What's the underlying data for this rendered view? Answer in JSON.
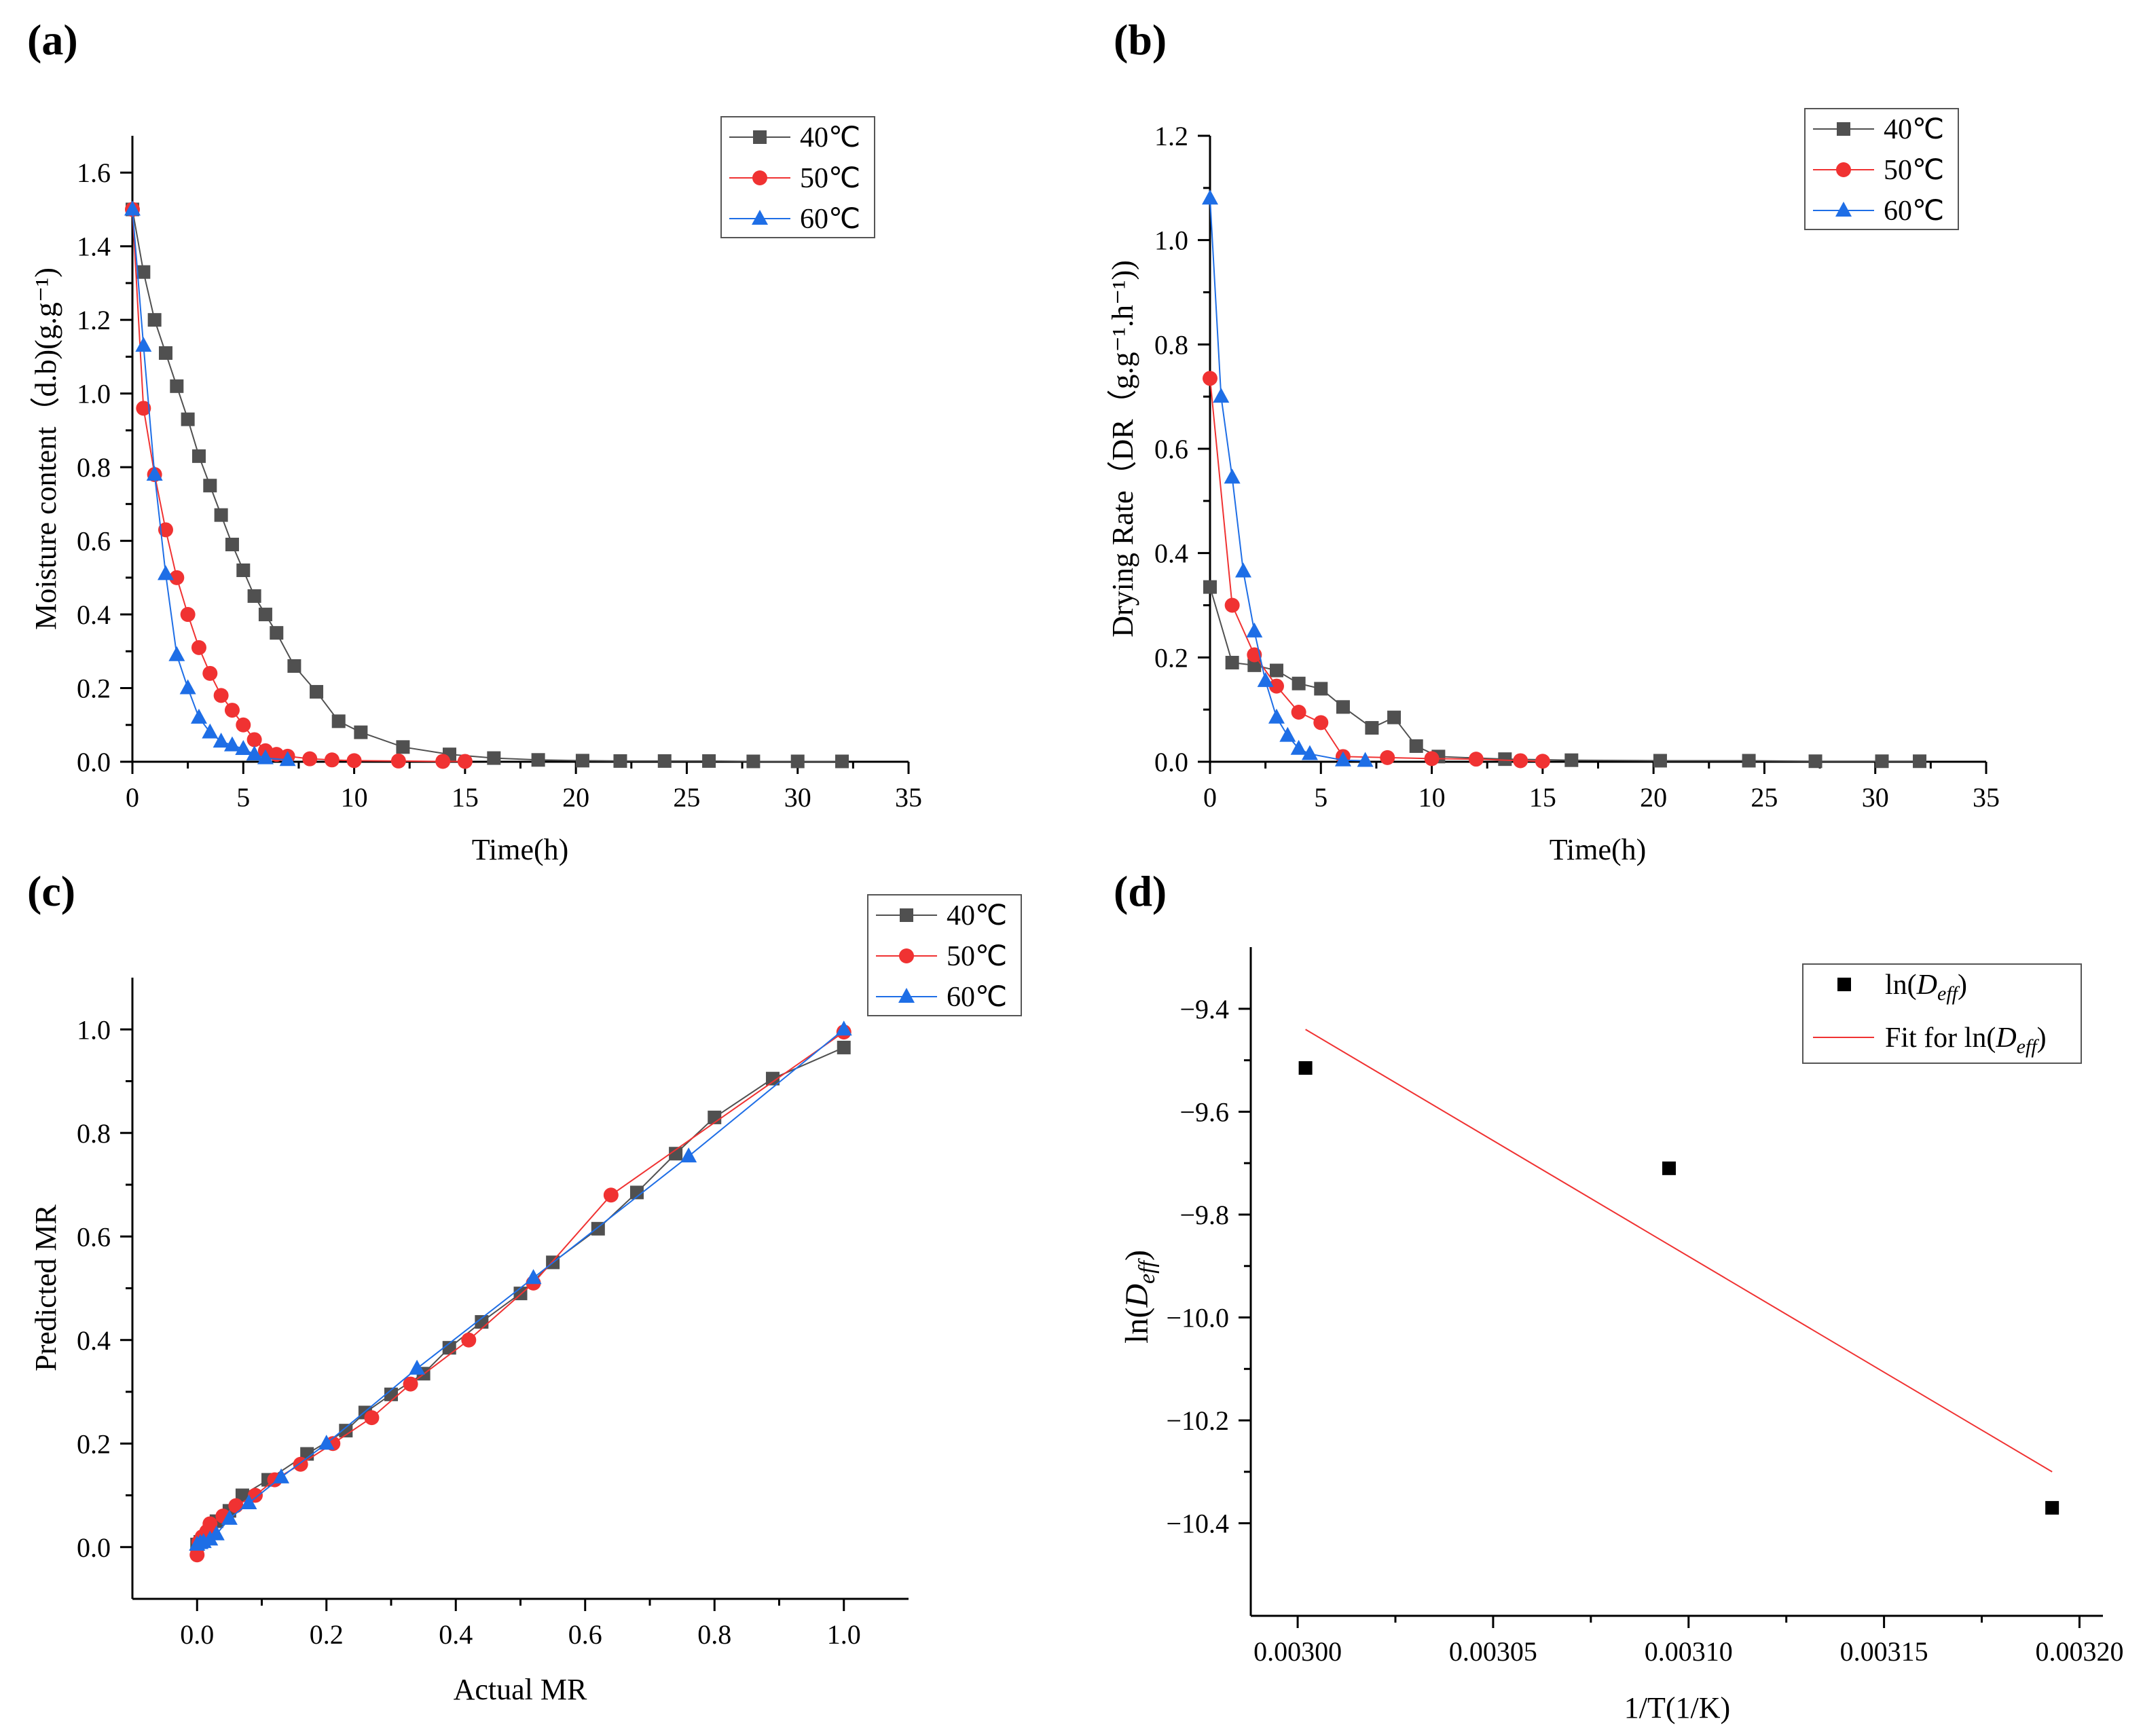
{
  "colors": {
    "s40": "#505050",
    "s50": "#f03232",
    "s60": "#1e6ee6",
    "black": "#000000",
    "fit": "#f03232"
  },
  "chart_data": [
    {
      "panel_label": "(a)",
      "type": "line",
      "xlabel": "Time(h)",
      "ylabel": "Moisture content（d.b)(g.g⁻¹)",
      "xlim": [
        0,
        35
      ],
      "ylim": [
        0,
        1.7
      ],
      "xticks": [
        0,
        5,
        10,
        15,
        20,
        25,
        30,
        35
      ],
      "xtick_labels": [
        "0",
        "5",
        "10",
        "15",
        "20",
        "25",
        "30",
        "35"
      ],
      "yticks": [
        0,
        0.2,
        0.4,
        0.6,
        0.8,
        1.0,
        1.2,
        1.4,
        1.6
      ],
      "ytick_labels": [
        "0.0",
        "0.2",
        "0.4",
        "0.6",
        "0.8",
        "1.0",
        "1.2",
        "1.4",
        "1.6"
      ],
      "legend_position": "top-right",
      "series": [
        {
          "name": "40℃",
          "marker": "square",
          "color": "#505050",
          "x": [
            0,
            0.5,
            1,
            1.5,
            2,
            2.5,
            3,
            3.5,
            4,
            4.5,
            5,
            5.5,
            6,
            6.5,
            7.3,
            8.3,
            9.3,
            10.3,
            12.2,
            14.3,
            16.3,
            18.3,
            20.3,
            22,
            24,
            26,
            28,
            30,
            32
          ],
          "y": [
            1.5,
            1.33,
            1.2,
            1.11,
            1.02,
            0.93,
            0.83,
            0.75,
            0.67,
            0.59,
            0.52,
            0.45,
            0.4,
            0.35,
            0.26,
            0.19,
            0.11,
            0.08,
            0.04,
            0.02,
            0.01,
            0.005,
            0.003,
            0.002,
            0.002,
            0.002,
            0.001,
            0.001,
            0.001
          ]
        },
        {
          "name": "50℃",
          "marker": "circle",
          "color": "#f03232",
          "x": [
            0,
            0.5,
            1,
            1.5,
            2,
            2.5,
            3,
            3.5,
            4,
            4.5,
            5,
            5.5,
            6,
            6.5,
            7,
            8,
            9,
            10,
            12,
            14,
            15
          ],
          "y": [
            1.5,
            0.96,
            0.78,
            0.63,
            0.5,
            0.4,
            0.31,
            0.24,
            0.18,
            0.14,
            0.1,
            0.06,
            0.03,
            0.02,
            0.015,
            0.008,
            0.005,
            0.003,
            0.002,
            0.001,
            0.001
          ]
        },
        {
          "name": "60℃",
          "marker": "triangle",
          "color": "#1e6ee6",
          "x": [
            0,
            0.5,
            1,
            1.5,
            2,
            2.5,
            3,
            3.5,
            4,
            4.5,
            5,
            5.5,
            6,
            7
          ],
          "y": [
            1.5,
            1.13,
            0.78,
            0.51,
            0.29,
            0.2,
            0.12,
            0.08,
            0.055,
            0.045,
            0.035,
            0.02,
            0.01,
            0.005
          ]
        }
      ]
    },
    {
      "panel_label": "(b)",
      "type": "line",
      "xlabel": "Time(h)",
      "ylabel": "Drying Rate（DR（g.g⁻¹.h⁻¹))",
      "xlim": [
        0,
        35
      ],
      "ylim": [
        0,
        1.2
      ],
      "xticks": [
        0,
        5,
        10,
        15,
        20,
        25,
        30,
        35
      ],
      "xtick_labels": [
        "0",
        "5",
        "10",
        "15",
        "20",
        "25",
        "30",
        "35"
      ],
      "yticks": [
        0,
        0.2,
        0.4,
        0.6,
        0.8,
        1.0,
        1.2
      ],
      "ytick_labels": [
        "0.0",
        "0.2",
        "0.4",
        "0.6",
        "0.8",
        "1.0",
        "1.2"
      ],
      "legend_position": "top-right",
      "series": [
        {
          "name": "40℃",
          "marker": "square",
          "color": "#505050",
          "x": [
            0,
            1,
            2,
            3,
            4,
            5,
            6,
            7.3,
            8.3,
            9.3,
            10.3,
            13.3,
            16.3,
            20.3,
            24.3,
            27.3,
            30.3,
            32
          ],
          "y": [
            0.335,
            0.19,
            0.185,
            0.175,
            0.15,
            0.14,
            0.105,
            0.065,
            0.085,
            0.03,
            0.01,
            0.005,
            0.003,
            0.002,
            0.002,
            0.001,
            0.001,
            0.001
          ]
        },
        {
          "name": "50℃",
          "marker": "circle",
          "color": "#f03232",
          "x": [
            0,
            1,
            2,
            3,
            4,
            5,
            6,
            8,
            10,
            12,
            14,
            15
          ],
          "y": [
            0.735,
            0.3,
            0.205,
            0.145,
            0.095,
            0.075,
            0.01,
            0.008,
            0.006,
            0.005,
            0.002,
            0.001
          ]
        },
        {
          "name": "60℃",
          "marker": "triangle",
          "color": "#1e6ee6",
          "x": [
            0,
            0.5,
            1,
            1.5,
            2,
            2.5,
            3,
            3.5,
            4,
            4.5,
            6,
            7
          ],
          "y": [
            1.08,
            0.7,
            0.545,
            0.365,
            0.25,
            0.155,
            0.085,
            0.05,
            0.025,
            0.015,
            0.003,
            0.002
          ]
        }
      ]
    },
    {
      "panel_label": "(c)",
      "type": "line",
      "xlabel": "Actual MR",
      "ylabel": "Predicted MR",
      "xlim": [
        -0.1,
        1.1
      ],
      "ylim": [
        -0.1,
        1.1
      ],
      "xticks": [
        0,
        0.2,
        0.4,
        0.6,
        0.8,
        1.0
      ],
      "xtick_labels": [
        "0.0",
        "0.2",
        "0.4",
        "0.6",
        "0.8",
        "1.0"
      ],
      "yticks": [
        0,
        0.2,
        0.4,
        0.6,
        0.8,
        1.0
      ],
      "ytick_labels": [
        "0.0",
        "0.2",
        "0.4",
        "0.6",
        "0.8",
        "1.0"
      ],
      "legend_position": "top-right",
      "series": [
        {
          "name": "40℃",
          "marker": "square",
          "color": "#505050",
          "x": [
            0.0,
            0.005,
            0.01,
            0.02,
            0.03,
            0.05,
            0.07,
            0.11,
            0.17,
            0.23,
            0.26,
            0.3,
            0.35,
            0.39,
            0.44,
            0.5,
            0.55,
            0.62,
            0.68,
            0.74,
            0.8,
            0.89,
            1.0
          ],
          "y": [
            0.005,
            0.01,
            0.015,
            0.03,
            0.05,
            0.07,
            0.1,
            0.13,
            0.18,
            0.225,
            0.26,
            0.295,
            0.335,
            0.385,
            0.435,
            0.49,
            0.55,
            0.615,
            0.685,
            0.76,
            0.83,
            0.905,
            0.965
          ]
        },
        {
          "name": "50℃",
          "marker": "circle",
          "color": "#f03232",
          "x": [
            0.0,
            0.003,
            0.008,
            0.015,
            0.02,
            0.04,
            0.06,
            0.09,
            0.12,
            0.16,
            0.21,
            0.27,
            0.33,
            0.42,
            0.52,
            0.64,
            1.0
          ],
          "y": [
            -0.015,
            0.01,
            0.02,
            0.03,
            0.045,
            0.06,
            0.08,
            0.1,
            0.13,
            0.16,
            0.2,
            0.25,
            0.315,
            0.4,
            0.51,
            0.68,
            0.995
          ]
        },
        {
          "name": "60℃",
          "marker": "triangle",
          "color": "#1e6ee6",
          "x": [
            0.0,
            0.005,
            0.01,
            0.02,
            0.03,
            0.05,
            0.08,
            0.13,
            0.2,
            0.34,
            0.52,
            0.76,
            1.0
          ],
          "y": [
            0.005,
            0.008,
            0.01,
            0.015,
            0.025,
            0.055,
            0.085,
            0.135,
            0.2,
            0.345,
            0.52,
            0.755,
            1.0
          ]
        }
      ]
    },
    {
      "panel_label": "(d)",
      "type": "scatter",
      "xlabel": "1/T(1/K)",
      "ylabel": "ln(D_eff)",
      "xlim": [
        0.002988,
        0.003206
      ],
      "ylim": [
        -10.58,
        -9.28
      ],
      "xticks": [
        0.003,
        0.00305,
        0.0031,
        0.00315,
        0.0032
      ],
      "xtick_labels": [
        "0.00300",
        "0.00305",
        "0.00310",
        "0.00315",
        "0.00320"
      ],
      "yticks": [
        -9.4,
        -9.6,
        -9.8,
        -10.0,
        -10.2,
        -10.4
      ],
      "ytick_labels": [
        "−9.4",
        "−9.6",
        "−9.8",
        "−10.0",
        "−10.2",
        "−10.4"
      ],
      "legend_position": "top-right",
      "series": [
        {
          "name": "ln(D_eff)",
          "marker": "square",
          "color": "#000000",
          "x": [
            0.003002,
            0.003095,
            0.003193
          ],
          "y": [
            -9.515,
            -9.71,
            -10.37
          ]
        },
        {
          "name": "Fit for ln(D_eff)",
          "marker": "none",
          "color": "#f03232",
          "x": [
            0.003002,
            0.003193
          ],
          "y": [
            -9.44,
            -10.3
          ]
        }
      ]
    }
  ]
}
